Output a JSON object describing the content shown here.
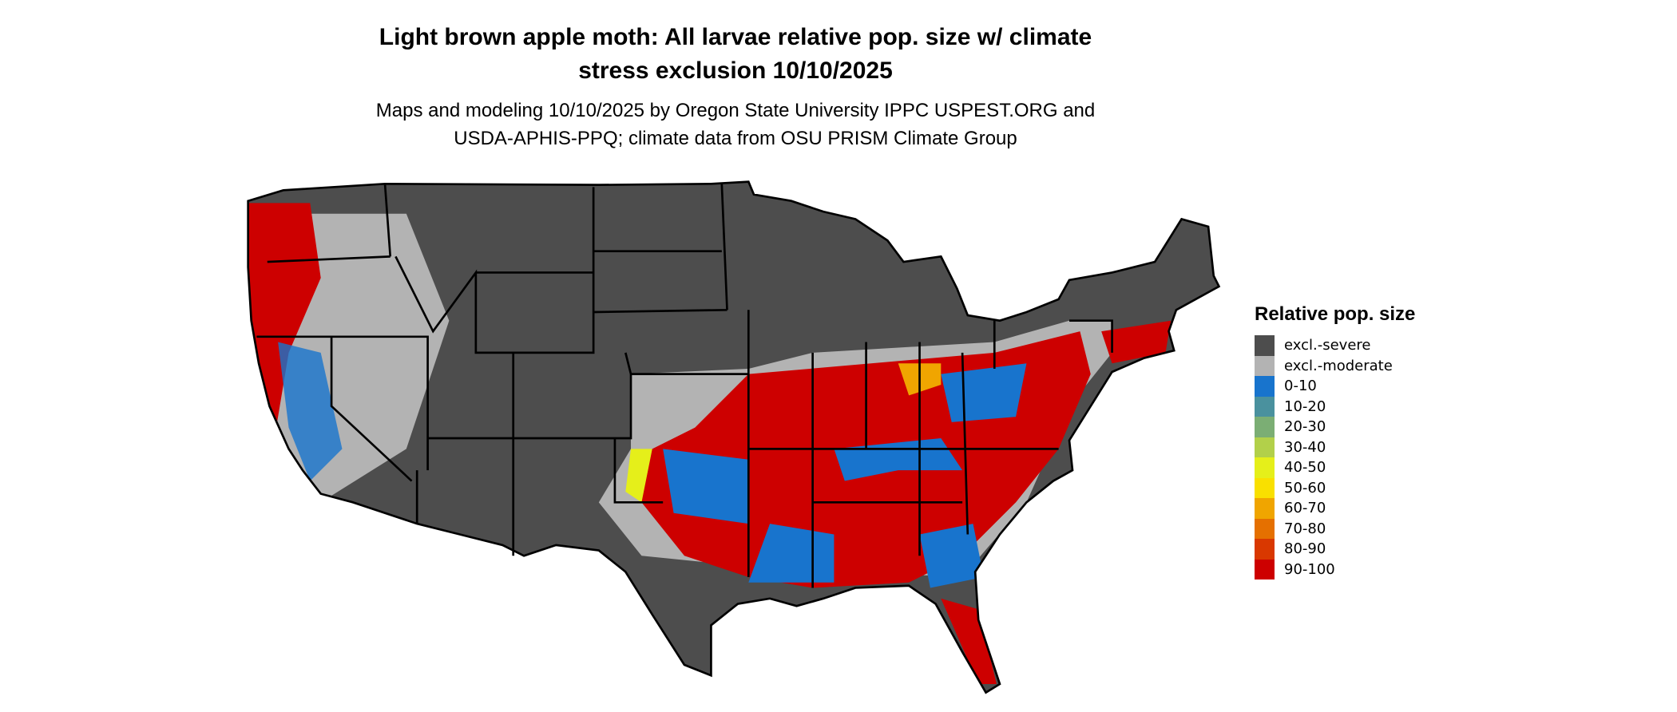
{
  "title": {
    "line1": "Light brown apple moth: All larvae relative pop. size w/ climate",
    "line2": "stress exclusion 10/10/2025"
  },
  "subtitle": {
    "line1": "Maps and modeling 10/10/2025 by Oregon State University IPPC USPEST.ORG and",
    "line2": "USDA-APHIS-PPQ; climate data from OSU PRISM Climate Group"
  },
  "legend": {
    "title": "Relative pop. size",
    "items": [
      {
        "label": "excl.-severe",
        "color": "#4d4d4d"
      },
      {
        "label": "excl.-moderate",
        "color": "#b3b3b3"
      },
      {
        "label": "0-10",
        "color": "#1874cd"
      },
      {
        "label": "10-20",
        "color": "#4a919e"
      },
      {
        "label": "20-30",
        "color": "#7bae74"
      },
      {
        "label": "30-40",
        "color": "#b2d04a"
      },
      {
        "label": "40-50",
        "color": "#e5ef1a"
      },
      {
        "label": "50-60",
        "color": "#f9e000"
      },
      {
        "label": "60-70",
        "color": "#f0a500"
      },
      {
        "label": "70-80",
        "color": "#e57000"
      },
      {
        "label": "80-90",
        "color": "#d93800"
      },
      {
        "label": "90-100",
        "color": "#cd0000"
      }
    ]
  },
  "map": {
    "region": "Contiguous United States",
    "border_color": "#000000"
  }
}
